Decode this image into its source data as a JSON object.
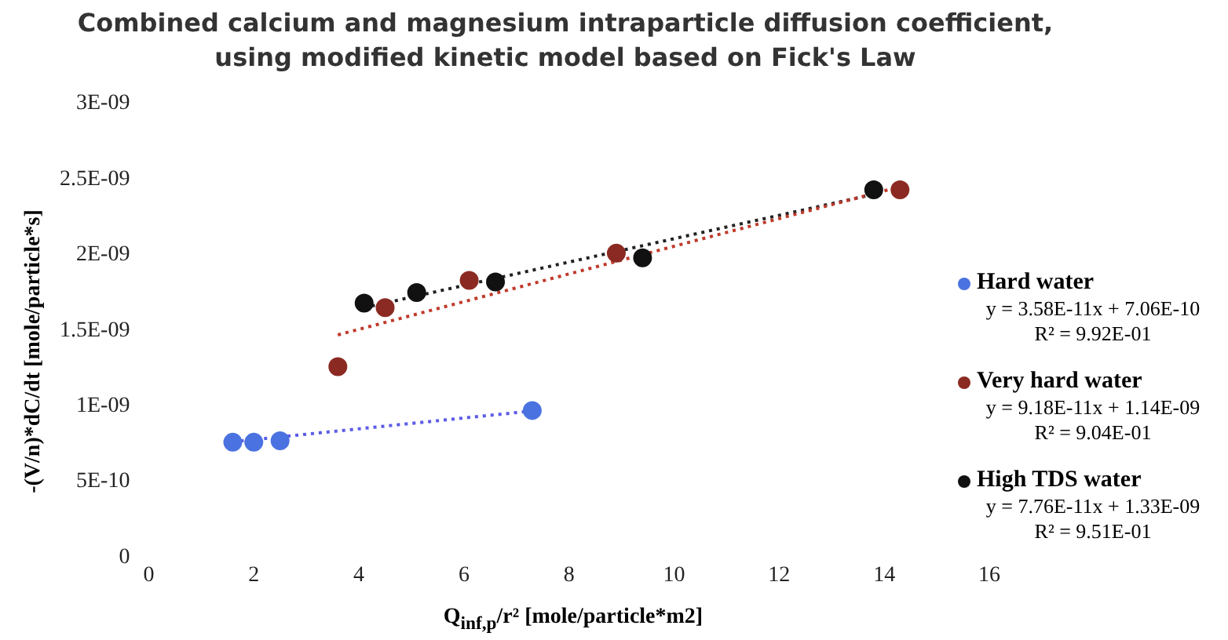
{
  "chart_data": {
    "type": "scatter",
    "title": "Combined calcium and magnesium intraparticle diffusion coefficient, using modified kinetic model based on Fick's Law",
    "xlabel": "Q$_{inf,p}$/r² [mole/particle*m2]",
    "ylabel": "-(V/n)*dC/dt [mole/particle*s]",
    "xlim": [
      0,
      16
    ],
    "xticks": [
      0,
      2,
      4,
      6,
      8,
      10,
      12,
      14,
      16
    ],
    "ylim": [
      0,
      3e-09
    ],
    "yticks": [
      {
        "value": 0,
        "label": "0"
      },
      {
        "value": 5e-10,
        "label": "5E-10"
      },
      {
        "value": 1e-09,
        "label": "1E-09"
      },
      {
        "value": 1.5e-09,
        "label": "1.5E-09"
      },
      {
        "value": 2e-09,
        "label": "2E-09"
      },
      {
        "value": 2.5e-09,
        "label": "2.5E-09"
      },
      {
        "value": 3e-09,
        "label": "3E-09"
      }
    ],
    "marker": "circle",
    "legend": "right",
    "series": [
      {
        "name": "Hard water",
        "color": "#4a72e0",
        "x": [
          1.6,
          2.0,
          2.5,
          7.3
        ],
        "values": [
          7.6e-10,
          7.6e-10,
          7.7e-10,
          9.7e-10
        ]
      },
      {
        "name": "Very hard water",
        "color": "#8b2a22",
        "x": [
          3.6,
          4.5,
          6.1,
          8.9,
          14.3
        ],
        "values": [
          1.26e-09,
          1.65e-09,
          1.83e-09,
          2.01e-09,
          2.43e-09
        ]
      },
      {
        "name": "High TDS water",
        "color": "#111111",
        "x": [
          4.1,
          5.1,
          6.6,
          9.4,
          13.8
        ],
        "values": [
          1.68e-09,
          1.75e-09,
          1.82e-09,
          1.98e-09,
          2.43e-09
        ]
      },
      {
        "type": "line",
        "marker": "none",
        "line_style": "dotted",
        "color": "#5b5be8",
        "x": [
          1.6,
          7.3
        ],
        "values": [
          7.63e-10,
          9.67e-10
        ]
      },
      {
        "type": "line",
        "marker": "none",
        "line_style": "dotted",
        "color": "#c0392b",
        "x": [
          3.6,
          14.3
        ],
        "values": [
          1.47e-09,
          2.45e-09
        ]
      },
      {
        "type": "line",
        "marker": "none",
        "line_style": "dotted",
        "color": "#222222",
        "x": [
          4.1,
          13.8
        ],
        "values": [
          1.65e-09,
          2.4e-09
        ]
      }
    ],
    "annotations": [
      "y = 3.58E-11x + 7.06E-10",
      "R² = 9.92E-01",
      "y = 9.18E-11x + 1.14E-09",
      "R² = 9.04E-01",
      "y = 7.76E-11x + 1.33E-09",
      "R² = 9.51E-01"
    ]
  }
}
